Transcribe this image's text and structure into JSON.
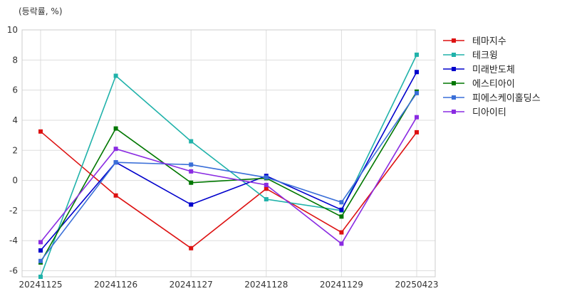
{
  "chart_data": {
    "type": "line",
    "title": "",
    "unit_label": "(등락률, %)",
    "xlabel": "",
    "ylabel": "",
    "categories": [
      "20241125",
      "20241126",
      "20241127",
      "20241128",
      "20241129",
      "20250423"
    ],
    "ylim": [
      -6.4,
      10
    ],
    "yticks": [
      10,
      8,
      6,
      4,
      2,
      0,
      -2,
      -4,
      -6
    ],
    "ytick_labels": [
      "10",
      "8",
      "6",
      "4",
      "2",
      "0",
      "-2",
      "-4",
      "-6"
    ],
    "grid": true,
    "legend_position": "right-top",
    "series": [
      {
        "name": "테마지수",
        "color": "#dd1111",
        "values": [
          3.25,
          -1.0,
          -4.5,
          -0.55,
          -3.45,
          3.2
        ]
      },
      {
        "name": "테크윙",
        "color": "#20b2aa",
        "values": [
          -6.4,
          6.95,
          2.6,
          -1.25,
          -2.0,
          8.35
        ]
      },
      {
        "name": "미래반도체",
        "color": "#0000cc",
        "values": [
          -4.65,
          1.2,
          -1.6,
          0.3,
          -1.95,
          7.2
        ]
      },
      {
        "name": "에스티아이",
        "color": "#007700",
        "values": [
          -5.45,
          3.45,
          -0.15,
          0.15,
          -2.4,
          5.9
        ]
      },
      {
        "name": "피에스케이홀딩스",
        "color": "#3a6fd8",
        "values": [
          -5.35,
          1.2,
          1.05,
          0.2,
          -1.45,
          5.8
        ]
      },
      {
        "name": "디아이티",
        "color": "#8a2be2",
        "values": [
          -4.1,
          2.1,
          0.6,
          -0.3,
          -4.2,
          4.2
        ]
      }
    ]
  }
}
